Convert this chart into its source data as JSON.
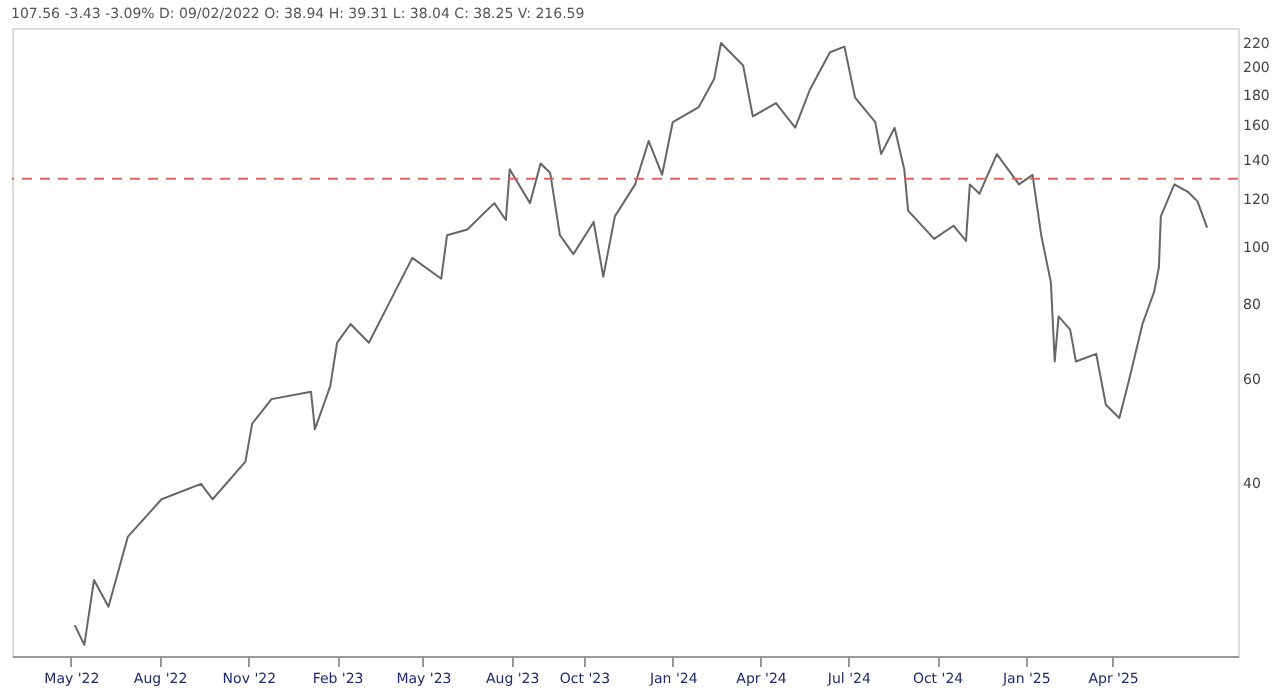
{
  "chart_data": {
    "type": "line",
    "title": "107.56 -3.43 -3.09% D: 09/02/2022 O: 38.94 H: 39.31 L: 38.04 C: 38.25 V: 216.59",
    "x": [
      "2022-05-05",
      "2022-05-15",
      "2022-05-25",
      "2022-06-09",
      "2022-06-29",
      "2022-08-03",
      "2022-09-13",
      "2022-09-25",
      "2022-10-29",
      "2022-11-05",
      "2022-11-25",
      "2023-01-05",
      "2023-01-09",
      "2023-01-25",
      "2023-02-01",
      "2023-02-15",
      "2023-03-06",
      "2023-03-26",
      "2023-04-20",
      "2023-05-20",
      "2023-05-26",
      "2023-06-16",
      "2023-07-14",
      "2023-07-26",
      "2023-07-30",
      "2023-08-20",
      "2023-08-31",
      "2023-09-10",
      "2023-09-20",
      "2023-10-04",
      "2023-10-25",
      "2023-11-04",
      "2023-11-16",
      "2023-12-07",
      "2023-12-21",
      "2024-01-04",
      "2024-01-15",
      "2024-02-11",
      "2024-02-27",
      "2024-03-05",
      "2024-03-28",
      "2024-04-07",
      "2024-05-01",
      "2024-05-21",
      "2024-06-05",
      "2024-06-26",
      "2024-07-11",
      "2024-07-22",
      "2024-08-12",
      "2024-08-18",
      "2024-09-01",
      "2024-09-11",
      "2024-09-15",
      "2024-10-12",
      "2024-11-01",
      "2024-11-14",
      "2024-11-18",
      "2024-11-28",
      "2024-12-16",
      "2025-01-08",
      "2025-01-22",
      "2025-01-31",
      "2025-02-10",
      "2025-02-14",
      "2025-02-18",
      "2025-03-02",
      "2025-03-08",
      "2025-03-29",
      "2025-04-08",
      "2025-04-22",
      "2025-05-02",
      "2025-05-16",
      "2025-05-28",
      "2025-06-02",
      "2025-06-04",
      "2025-06-18",
      "2025-07-02",
      "2025-07-12",
      "2025-07-22"
    ],
    "series": [
      {
        "color": "#666666",
        "values": [
          23.1,
          21.4,
          27.5,
          24.8,
          32.5,
          37.6,
          39.9,
          37.6,
          43.5,
          50.4,
          55.4,
          57.0,
          49.3,
          58.3,
          68.9,
          74.1,
          68.9,
          79.8,
          95.7,
          88.3,
          104.5,
          106.8,
          118.3,
          110.8,
          134.9,
          118.3,
          137.9,
          132.9,
          104.5,
          97.1,
          110.0,
          89.0,
          112.4,
          127.2,
          150.5,
          132.0,
          161.9,
          171.6,
          191.5,
          219.9,
          201.5,
          165.5,
          174.2,
          158.4,
          183.3,
          212.1,
          216.8,
          178.0,
          161.9,
          143.0,
          158.4,
          134.9,
          114.9,
          103.0,
          108.4,
          102.2,
          127.2,
          122.7,
          143.0,
          127.2,
          132.0,
          104.5,
          87.1,
          64.1,
          76.3,
          72.5,
          64.1,
          66.0,
          54.2,
          51.5,
          59.6,
          74.1,
          83.9,
          92.3,
          112.4,
          127.2,
          123.6,
          119.1,
          107.6
        ]
      }
    ],
    "log": "y",
    "xlim": [
      "2022-03-01",
      "2025-08-23"
    ],
    "xticks": [
      {
        "value": "2022-05-01",
        "label": "May '22"
      },
      {
        "value": "2022-08-01",
        "label": "Aug '22"
      },
      {
        "value": "2022-11-01",
        "label": "Nov '22"
      },
      {
        "value": "2023-02-01",
        "label": "Feb '23"
      },
      {
        "value": "2023-05-01",
        "label": "May '23"
      },
      {
        "value": "2023-08-01",
        "label": "Aug '23"
      },
      {
        "value": "2023-10-15",
        "label": "Oct '23"
      },
      {
        "value": "2024-01-15",
        "label": "Jan '24"
      },
      {
        "value": "2024-04-15",
        "label": "Apr '24"
      },
      {
        "value": "2024-07-15",
        "label": "Jul '24"
      },
      {
        "value": "2024-10-15",
        "label": "Oct '24"
      },
      {
        "value": "2025-01-15",
        "label": "Jan '25"
      },
      {
        "value": "2025-04-15",
        "label": "Apr '25"
      }
    ],
    "ylim": [
      20.5,
      233
    ],
    "yticks": [
      40,
      60,
      80,
      100,
      120,
      140,
      160,
      180,
      200,
      220
    ],
    "ref_lines": [
      {
        "axis": "y",
        "value": 130,
        "label": null,
        "color": "#e06666",
        "line_style": "dashed"
      }
    ],
    "grid": false
  }
}
